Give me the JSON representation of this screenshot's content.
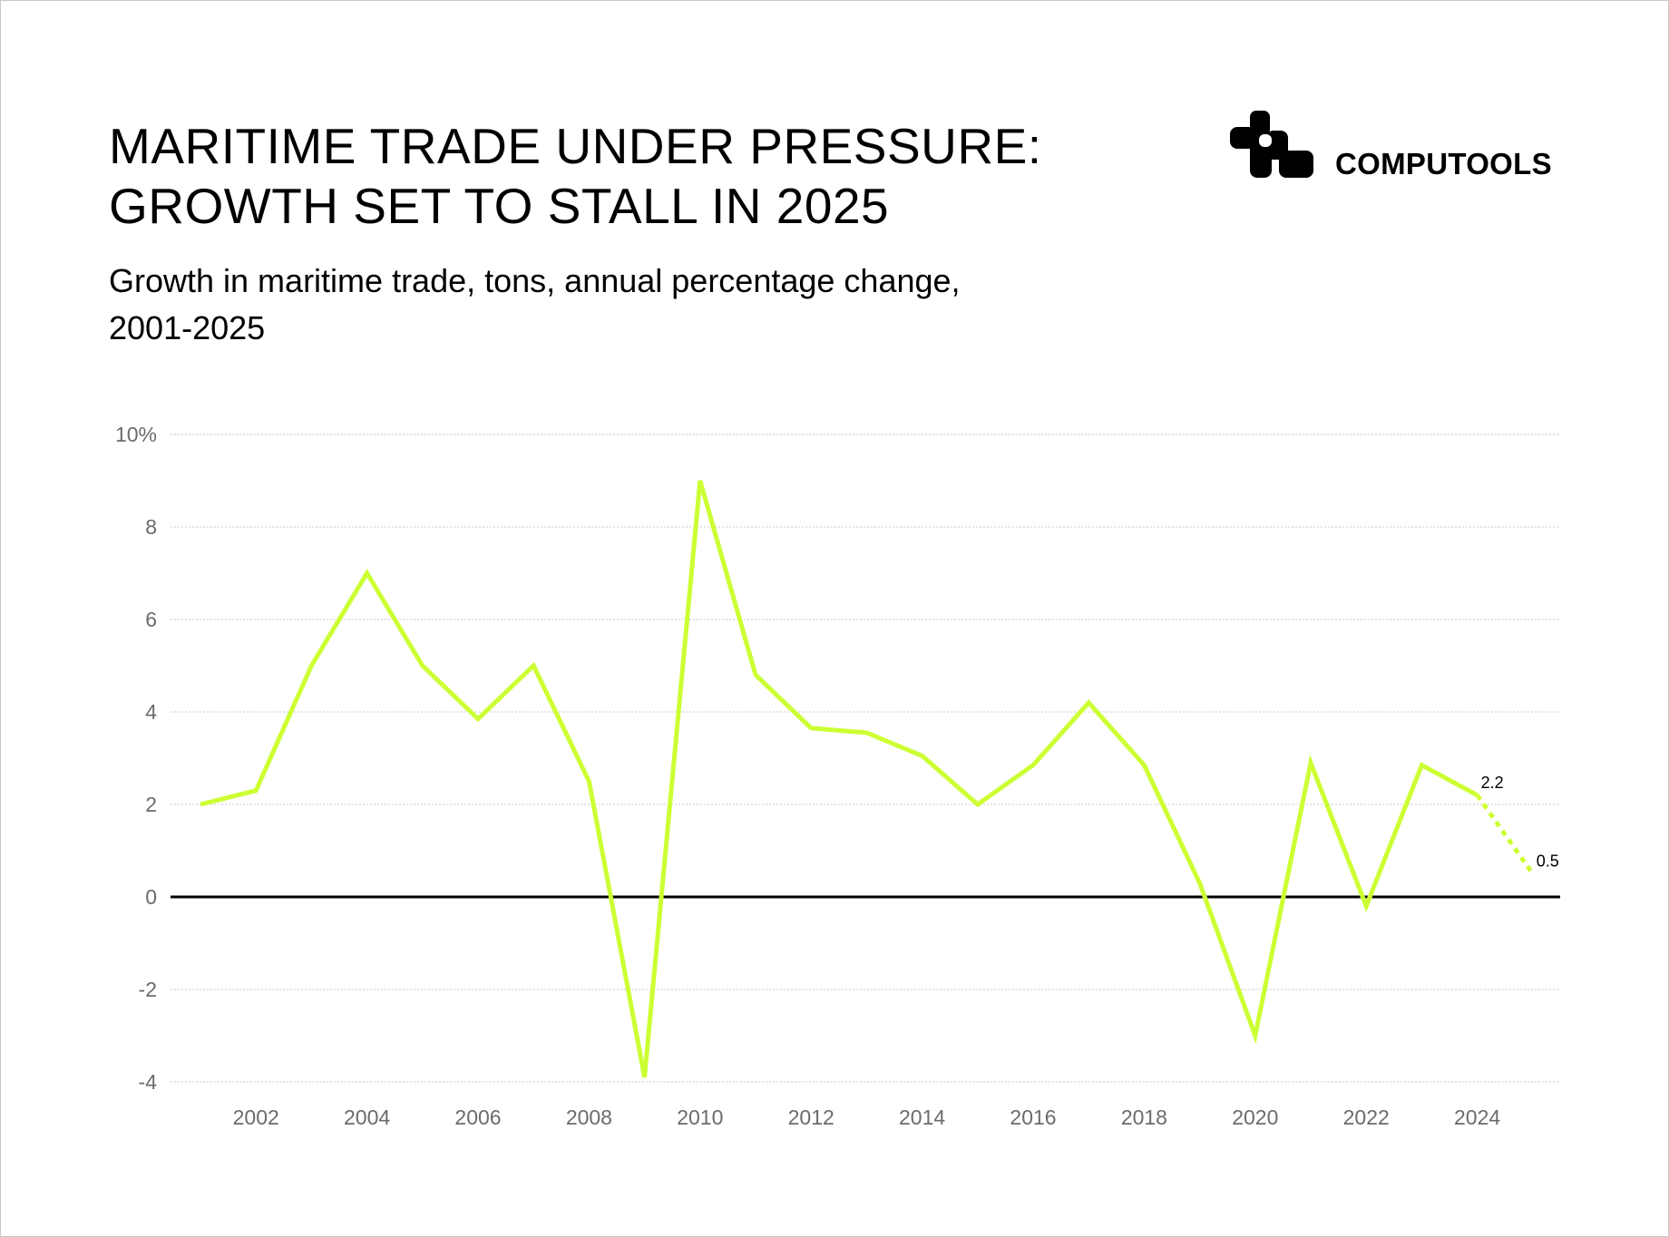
{
  "title_lines": [
    "MARITIME TRADE UNDER PRESSURE:",
    "GROWTH SET TO STALL IN 2025"
  ],
  "subtitle_lines": [
    "Growth in maritime trade, tons, annual percentage change,",
    "2001-2025"
  ],
  "logo": {
    "text": "COMPUTOOLS"
  },
  "colors": {
    "line": "#CCFF33",
    "zero_line": "#000000",
    "grid": "#c8c8c8",
    "tick": "#6b6b6b"
  },
  "chart_data": {
    "type": "line",
    "title": "MARITIME TRADE UNDER PRESSURE: GROWTH SET TO STALL IN 2025",
    "subtitle": "Growth in maritime trade, tons, annual percentage change, 2001-2025",
    "x": [
      2001,
      2002,
      2003,
      2004,
      2005,
      2006,
      2007,
      2008,
      2009,
      2010,
      2011,
      2012,
      2013,
      2014,
      2015,
      2016,
      2017,
      2018,
      2019,
      2020,
      2021,
      2022,
      2023,
      2024,
      2025
    ],
    "series": [
      {
        "values": [
          2.0,
          2.3,
          5.0,
          7.0,
          5.0,
          3.85,
          5.0,
          2.5,
          -3.9,
          9.0,
          4.8,
          3.65,
          3.55,
          3.05,
          2.0,
          2.85,
          4.2,
          2.85,
          0.3,
          -3.0,
          2.9,
          -0.2,
          2.85,
          2.2,
          0.5
        ],
        "projected_from": 2024
      }
    ],
    "ylim": [
      -4,
      10
    ],
    "yticks": [
      -4,
      -2,
      0,
      2,
      4,
      6,
      8,
      10
    ],
    "ytick_labels": [
      "-4",
      "-2",
      "0",
      "2",
      "4",
      "6",
      "8",
      "10%"
    ],
    "xticks": [
      2002,
      2004,
      2006,
      2008,
      2010,
      2012,
      2014,
      2016,
      2018,
      2020,
      2022,
      2024
    ],
    "xtick_labels": [
      "2002",
      "2004",
      "2006",
      "2008",
      "2010",
      "2012",
      "2014",
      "2016",
      "2018",
      "2020",
      "2022",
      "2024"
    ],
    "annotations": [
      {
        "x": 2024,
        "text": "2.2"
      },
      {
        "x": 2025,
        "text": "0.5"
      }
    ],
    "grid": true,
    "xlabel": "",
    "ylabel": ""
  }
}
